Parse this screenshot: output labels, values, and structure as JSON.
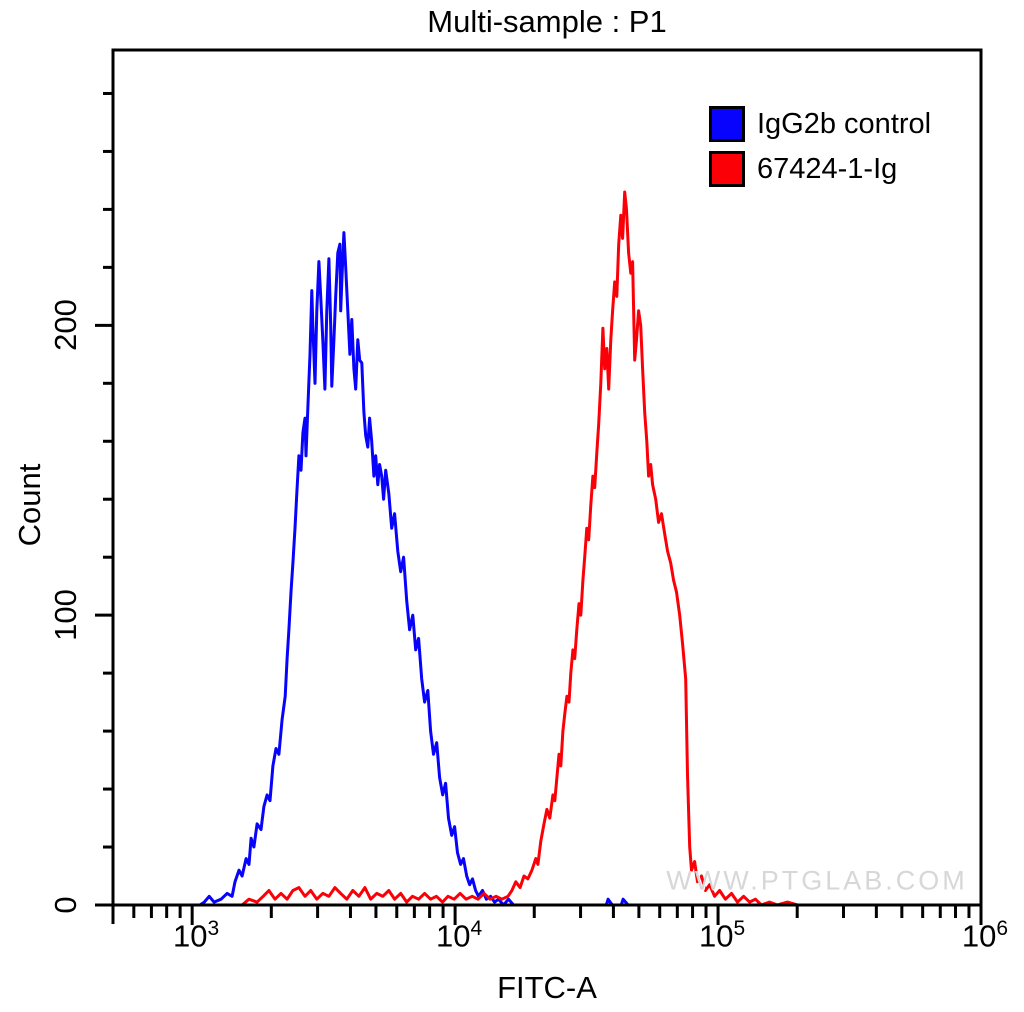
{
  "title": "Multi-sample : P1",
  "watermark": "WWW.PTGLAB.COM",
  "colors": {
    "axis": "#000000",
    "blue_series": "#0703fc",
    "red_series": "#fb0007",
    "watermark": "#d7d7d7",
    "background": "#ffffff"
  },
  "legend": {
    "items": [
      {
        "label": "IgG2b control",
        "color": "#0703fc"
      },
      {
        "label": "67424-1-Ig",
        "color": "#fb0007"
      }
    ]
  },
  "chart_data": {
    "type": "line",
    "subtype": "flow-cytometry-overlay-histogram",
    "title": "Multi-sample : P1",
    "xlabel": "FITC-A",
    "ylabel": "Count",
    "x_scale": "log10",
    "xlim": [
      500,
      1000000
    ],
    "ylim": [
      0,
      295
    ],
    "grid": false,
    "legend_position": "top-right-inside",
    "x_major_ticks": [
      1000,
      10000,
      100000,
      1000000
    ],
    "x_major_tick_base": "10",
    "x_major_tick_exponents": [
      "3",
      "4",
      "5",
      "6"
    ],
    "y_major_ticks": [
      0,
      100,
      200
    ],
    "y_major_tick_labels": [
      "0",
      "100",
      "200"
    ],
    "y_minor_step": 20,
    "series": [
      {
        "name": "IgG2b control",
        "color": "#0703fc",
        "peak_x": 3800,
        "peak_count": 232,
        "points_logx_count": [
          [
            3.03,
            0
          ],
          [
            3.046,
            1
          ],
          [
            3.065,
            3
          ],
          [
            3.083,
            1
          ],
          [
            3.11,
            2
          ],
          [
            3.133,
            4
          ],
          [
            3.152,
            3
          ],
          [
            3.163,
            8
          ],
          [
            3.178,
            12
          ],
          [
            3.19,
            10
          ],
          [
            3.205,
            16
          ],
          [
            3.216,
            14
          ],
          [
            3.224,
            23
          ],
          [
            3.235,
            20
          ],
          [
            3.247,
            28
          ],
          [
            3.262,
            26
          ],
          [
            3.273,
            34
          ],
          [
            3.285,
            38
          ],
          [
            3.296,
            36
          ],
          [
            3.307,
            48
          ],
          [
            3.319,
            54
          ],
          [
            3.33,
            52
          ],
          [
            3.342,
            64
          ],
          [
            3.354,
            72
          ],
          [
            3.361,
            85
          ],
          [
            3.368,
            95
          ],
          [
            3.376,
            108
          ],
          [
            3.383,
            118
          ],
          [
            3.391,
            130
          ],
          [
            3.398,
            142
          ],
          [
            3.406,
            155
          ],
          [
            3.414,
            150
          ],
          [
            3.421,
            163
          ],
          [
            3.429,
            168
          ],
          [
            3.433,
            155
          ],
          [
            3.44,
            172
          ],
          [
            3.448,
            190
          ],
          [
            3.455,
            212
          ],
          [
            3.459,
            200
          ],
          [
            3.467,
            180
          ],
          [
            3.474,
            205
          ],
          [
            3.482,
            222
          ],
          [
            3.489,
            210
          ],
          [
            3.497,
            195
          ],
          [
            3.505,
            178
          ],
          [
            3.512,
            205
          ],
          [
            3.52,
            223
          ],
          [
            3.527,
            200
          ],
          [
            3.531,
            179
          ],
          [
            3.539,
            195
          ],
          [
            3.546,
            210
          ],
          [
            3.554,
            225
          ],
          [
            3.562,
            228
          ],
          [
            3.565,
            205
          ],
          [
            3.569,
            215
          ],
          [
            3.577,
            232
          ],
          [
            3.584,
            220
          ],
          [
            3.592,
            205
          ],
          [
            3.6,
            190
          ],
          [
            3.607,
            202
          ],
          [
            3.615,
            185
          ],
          [
            3.622,
            178
          ],
          [
            3.63,
            195
          ],
          [
            3.637,
            188
          ],
          [
            3.645,
            187
          ],
          [
            3.653,
            170
          ],
          [
            3.66,
            162
          ],
          [
            3.668,
            158
          ],
          [
            3.675,
            168
          ],
          [
            3.683,
            160
          ],
          [
            3.691,
            148
          ],
          [
            3.698,
            155
          ],
          [
            3.706,
            145
          ],
          [
            3.713,
            152
          ],
          [
            3.721,
            148
          ],
          [
            3.728,
            140
          ],
          [
            3.736,
            150
          ],
          [
            3.748,
            142
          ],
          [
            3.759,
            130
          ],
          [
            3.77,
            135
          ],
          [
            3.782,
            122
          ],
          [
            3.793,
            115
          ],
          [
            3.804,
            120
          ],
          [
            3.816,
            105
          ],
          [
            3.827,
            95
          ],
          [
            3.839,
            100
          ],
          [
            3.85,
            88
          ],
          [
            3.861,
            92
          ],
          [
            3.873,
            78
          ],
          [
            3.884,
            70
          ],
          [
            3.896,
            74
          ],
          [
            3.907,
            60
          ],
          [
            3.918,
            52
          ],
          [
            3.93,
            56
          ],
          [
            3.941,
            44
          ],
          [
            3.953,
            38
          ],
          [
            3.964,
            42
          ],
          [
            3.975,
            30
          ],
          [
            3.987,
            24
          ],
          [
            3.998,
            27
          ],
          [
            4.009,
            18
          ],
          [
            4.021,
            14
          ],
          [
            4.032,
            16
          ],
          [
            4.044,
            10
          ],
          [
            4.055,
            7
          ],
          [
            4.066,
            9
          ],
          [
            4.078,
            5
          ],
          [
            4.089,
            3
          ],
          [
            4.104,
            5
          ],
          [
            4.119,
            2
          ],
          [
            4.135,
            3
          ],
          [
            4.15,
            1
          ],
          [
            4.165,
            2
          ],
          [
            4.184,
            0
          ],
          [
            4.203,
            2
          ],
          [
            4.222,
            0
          ],
          [
            4.575,
            0
          ],
          [
            4.582,
            2
          ],
          [
            4.598,
            0
          ],
          [
            4.632,
            0
          ],
          [
            4.639,
            2
          ],
          [
            4.658,
            0
          ]
        ]
      },
      {
        "name": "67424-1-Ig",
        "color": "#fb0007",
        "peak_x": 44000,
        "peak_count": 246,
        "points_logx_count": [
          [
            3.19,
            0
          ],
          [
            3.216,
            2
          ],
          [
            3.247,
            1
          ],
          [
            3.27,
            3
          ],
          [
            3.292,
            5
          ],
          [
            3.315,
            2
          ],
          [
            3.338,
            4
          ],
          [
            3.361,
            2
          ],
          [
            3.383,
            5
          ],
          [
            3.406,
            6
          ],
          [
            3.429,
            3
          ],
          [
            3.451,
            5
          ],
          [
            3.474,
            2
          ],
          [
            3.497,
            4
          ],
          [
            3.52,
            3
          ],
          [
            3.543,
            6
          ],
          [
            3.565,
            4
          ],
          [
            3.588,
            2
          ],
          [
            3.611,
            5
          ],
          [
            3.634,
            3
          ],
          [
            3.657,
            6
          ],
          [
            3.679,
            2
          ],
          [
            3.702,
            4
          ],
          [
            3.725,
            3
          ],
          [
            3.748,
            5
          ],
          [
            3.77,
            2
          ],
          [
            3.793,
            4
          ],
          [
            3.816,
            1
          ],
          [
            3.838,
            3
          ],
          [
            3.861,
            2
          ],
          [
            3.884,
            4
          ],
          [
            3.907,
            2
          ],
          [
            3.929,
            3
          ],
          [
            3.952,
            1
          ],
          [
            3.973,
            3
          ],
          [
            3.996,
            2
          ],
          [
            4.019,
            4
          ],
          [
            4.042,
            2
          ],
          [
            4.065,
            3
          ],
          [
            4.087,
            2
          ],
          [
            4.11,
            4
          ],
          [
            4.133,
            2
          ],
          [
            4.156,
            3
          ],
          [
            4.178,
            2
          ],
          [
            4.201,
            3
          ],
          [
            4.216,
            5
          ],
          [
            4.231,
            8
          ],
          [
            4.247,
            6
          ],
          [
            4.262,
            10
          ],
          [
            4.277,
            9
          ],
          [
            4.292,
            12
          ],
          [
            4.307,
            16
          ],
          [
            4.315,
            14
          ],
          [
            4.326,
            22
          ],
          [
            4.338,
            28
          ],
          [
            4.349,
            33
          ],
          [
            4.36,
            30
          ],
          [
            4.372,
            38
          ],
          [
            4.379,
            36
          ],
          [
            4.387,
            44
          ],
          [
            4.395,
            52
          ],
          [
            4.402,
            48
          ],
          [
            4.41,
            60
          ],
          [
            4.417,
            66
          ],
          [
            4.425,
            72
          ],
          [
            4.433,
            70
          ],
          [
            4.44,
            80
          ],
          [
            4.448,
            88
          ],
          [
            4.455,
            85
          ],
          [
            4.463,
            95
          ],
          [
            4.471,
            104
          ],
          [
            4.478,
            100
          ],
          [
            4.486,
            112
          ],
          [
            4.493,
            120
          ],
          [
            4.501,
            130
          ],
          [
            4.508,
            126
          ],
          [
            4.516,
            138
          ],
          [
            4.524,
            148
          ],
          [
            4.531,
            144
          ],
          [
            4.539,
            156
          ],
          [
            4.546,
            166
          ],
          [
            4.554,
            180
          ],
          [
            4.562,
            199
          ],
          [
            4.569,
            185
          ],
          [
            4.577,
            192
          ],
          [
            4.584,
            178
          ],
          [
            4.592,
            195
          ],
          [
            4.599,
            205
          ],
          [
            4.607,
            215
          ],
          [
            4.615,
            210
          ],
          [
            4.622,
            228
          ],
          [
            4.63,
            238
          ],
          [
            4.637,
            230
          ],
          [
            4.645,
            246
          ],
          [
            4.652,
            240
          ],
          [
            4.66,
            225
          ],
          [
            4.668,
            218
          ],
          [
            4.675,
            222
          ],
          [
            4.683,
            188
          ],
          [
            4.69,
            195
          ],
          [
            4.698,
            205
          ],
          [
            4.706,
            200
          ],
          [
            4.713,
            185
          ],
          [
            4.721,
            170
          ],
          [
            4.729,
            160
          ],
          [
            4.736,
            148
          ],
          [
            4.744,
            152
          ],
          [
            4.751,
            145
          ],
          [
            4.763,
            140
          ],
          [
            4.774,
            132
          ],
          [
            4.785,
            135
          ],
          [
            4.797,
            128
          ],
          [
            4.808,
            122
          ],
          [
            4.82,
            118
          ],
          [
            4.831,
            112
          ],
          [
            4.842,
            108
          ],
          [
            4.854,
            100
          ],
          [
            4.865,
            90
          ],
          [
            4.877,
            78
          ],
          [
            4.884,
            45
          ],
          [
            4.892,
            20
          ],
          [
            4.899,
            12
          ],
          [
            4.911,
            15
          ],
          [
            4.922,
            8
          ],
          [
            4.937,
            10
          ],
          [
            4.952,
            5
          ],
          [
            4.968,
            7
          ],
          [
            4.987,
            3
          ],
          [
            5.006,
            5
          ],
          [
            5.028,
            2
          ],
          [
            5.051,
            4
          ],
          [
            5.074,
            1
          ],
          [
            5.097,
            3
          ],
          [
            5.12,
            1
          ],
          [
            5.142,
            2
          ],
          [
            5.165,
            0
          ],
          [
            5.195,
            1
          ],
          [
            5.226,
            0
          ],
          [
            5.264,
            1
          ],
          [
            5.302,
            0
          ]
        ]
      }
    ]
  }
}
